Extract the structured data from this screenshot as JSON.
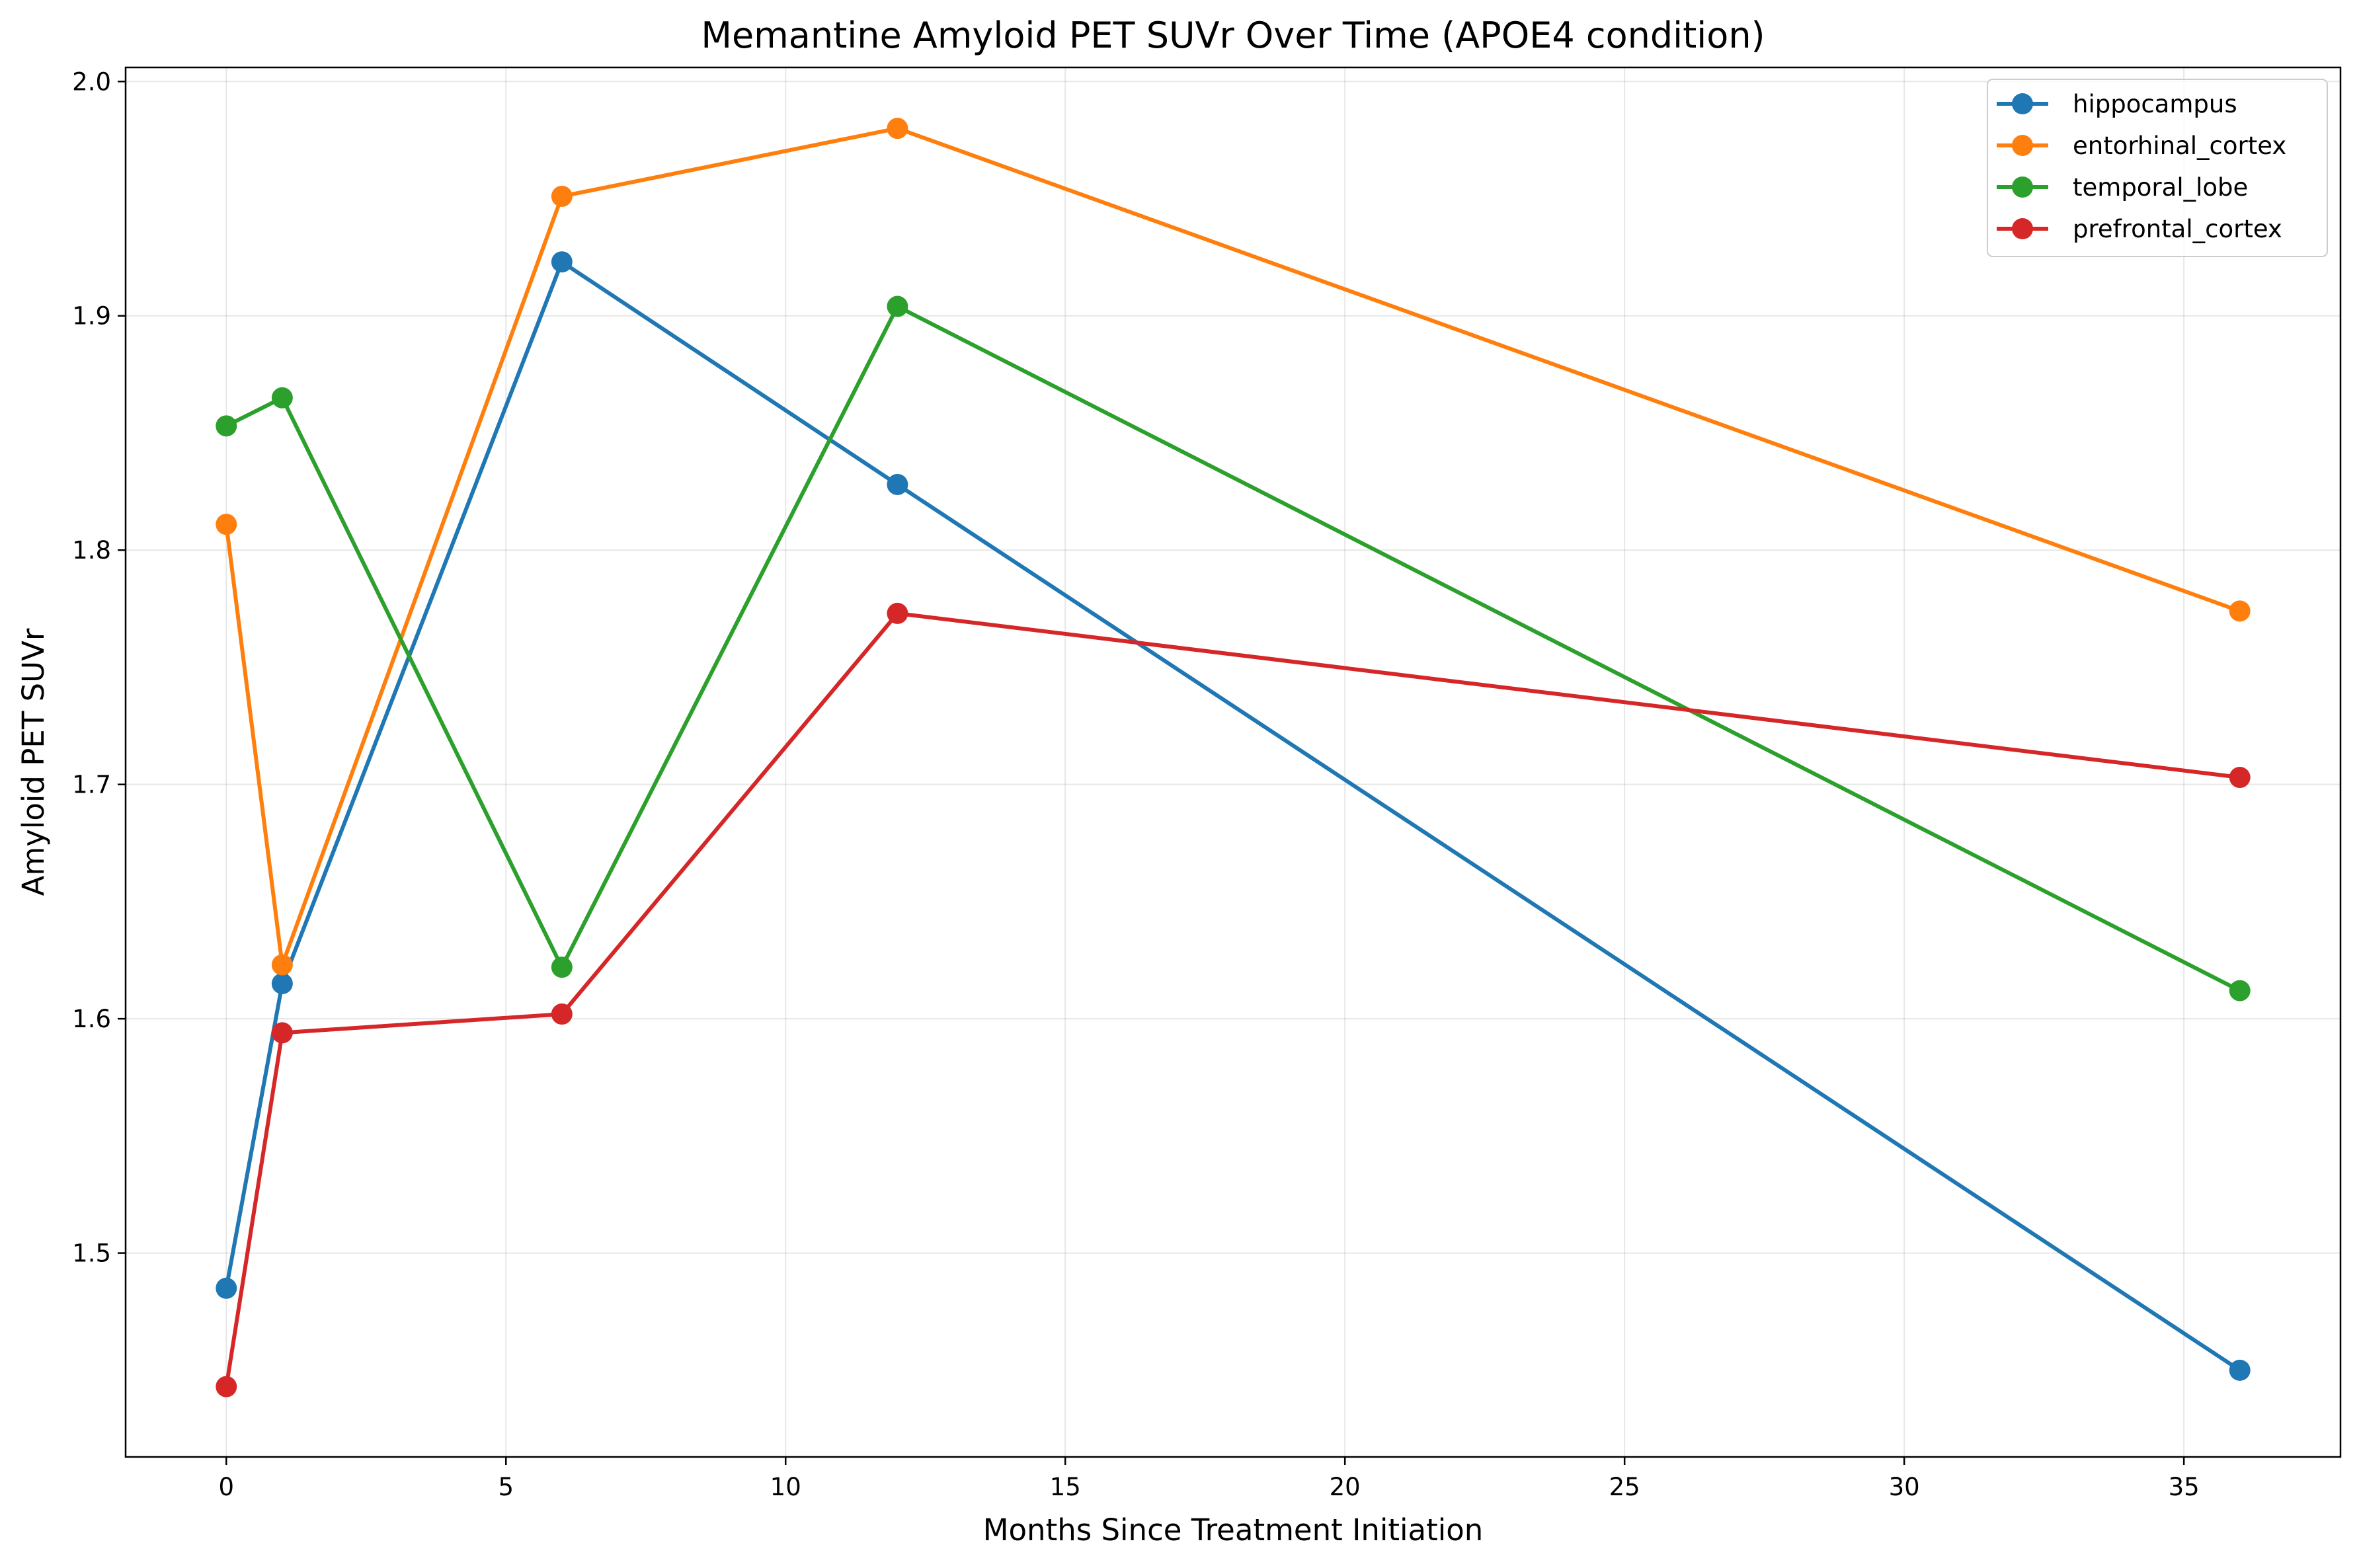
{
  "chart_data": {
    "type": "line",
    "title": "Memantine Amyloid PET SUVr Over Time (APOE4 condition)",
    "xlabel": "Months Since Treatment Initiation",
    "ylabel": "Amyloid PET SUVr",
    "x": [
      0,
      1,
      6,
      12,
      36
    ],
    "xlim": [
      -1.8,
      37.8
    ],
    "ylim": [
      1.413,
      2.006
    ],
    "xticks": [
      0,
      5,
      10,
      15,
      20,
      25,
      30,
      35
    ],
    "xtick_labels": [
      "0",
      "5",
      "10",
      "15",
      "20",
      "25",
      "30",
      "35"
    ],
    "yticks": [
      1.5,
      1.6,
      1.7,
      1.8,
      1.9,
      2.0
    ],
    "ytick_labels": [
      "1.5",
      "1.6",
      "1.7",
      "1.8",
      "1.9",
      "2.0"
    ],
    "grid": true,
    "legend_position": "top-right",
    "series": [
      {
        "name": "hippocampus",
        "color": "#1f77b4",
        "values": [
          1.485,
          1.615,
          1.923,
          1.828,
          1.45
        ]
      },
      {
        "name": "entorhinal_cortex",
        "color": "#ff7f0e",
        "values": [
          1.811,
          1.623,
          1.951,
          1.98,
          1.774
        ]
      },
      {
        "name": "temporal_lobe",
        "color": "#2ca02c",
        "values": [
          1.853,
          1.865,
          1.622,
          1.904,
          1.612
        ]
      },
      {
        "name": "prefrontal_cortex",
        "color": "#d62728",
        "values": [
          1.443,
          1.594,
          1.602,
          1.773,
          1.703
        ]
      }
    ]
  }
}
